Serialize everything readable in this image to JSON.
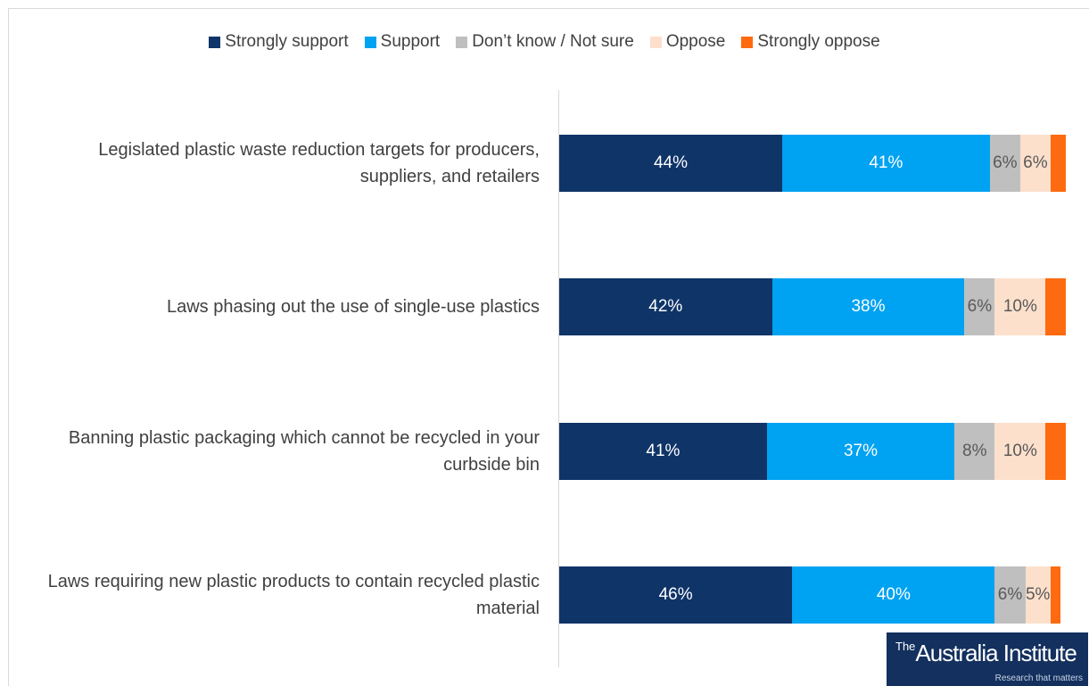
{
  "chart_data": {
    "type": "bar",
    "orientation": "horizontal",
    "stacked": true,
    "legend_position": "top",
    "categories": [
      "Legislated plastic waste reduction targets for producers, suppliers, and retailers",
      "Laws phasing out the use of single-use plastics",
      "Banning plastic packaging which cannot be recycled in your curbside bin",
      "Laws requiring new plastic products to contain recycled plastic material"
    ],
    "series": [
      {
        "name": "Strongly support",
        "color": "#0f3468",
        "label_color": "#ffffff",
        "values": [
          44,
          42,
          41,
          46
        ],
        "labels": [
          "44%",
          "42%",
          "41%",
          "46%"
        ]
      },
      {
        "name": "Support",
        "color": "#00a2f2",
        "label_color": "#ffffff",
        "values": [
          41,
          38,
          37,
          40
        ],
        "labels": [
          "41%",
          "38%",
          "37%",
          "40%"
        ]
      },
      {
        "name": "Don’t know / Not sure",
        "color": "#bfbfbf",
        "label_color": "#595959",
        "values": [
          6,
          6,
          8,
          6
        ],
        "labels": [
          "6%",
          "6%",
          "8%",
          "6%"
        ]
      },
      {
        "name": "Oppose",
        "color": "#fce0cc",
        "label_color": "#595959",
        "values": [
          6,
          10,
          10,
          5
        ],
        "labels": [
          "6%",
          "10%",
          "10%",
          "5%"
        ]
      },
      {
        "name": "Strongly oppose",
        "color": "#fe6a0f",
        "label_color": "#ffffff",
        "values": [
          3,
          4,
          4,
          2
        ],
        "labels": [
          "",
          "",
          "",
          ""
        ]
      }
    ],
    "xlim": [
      0,
      100
    ]
  },
  "logo": {
    "brand_prefix": "The",
    "brand_name": "Australia Institute",
    "tagline": "Research that matters"
  }
}
